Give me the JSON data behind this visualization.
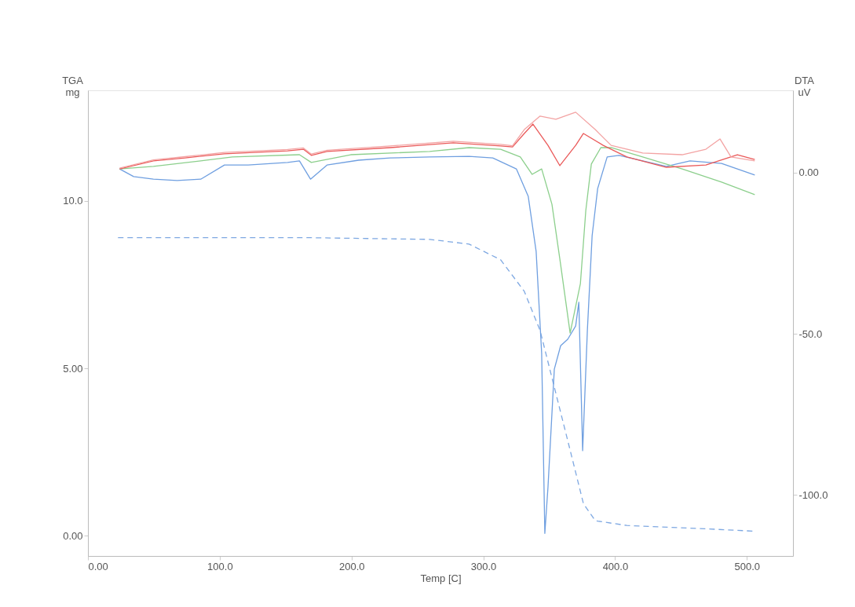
{
  "chart_data": {
    "type": "line",
    "xlabel": "Temp [C]",
    "ylabel": "TGA\nmg",
    "y2label": "DTA\nuV",
    "xlim": [
      0,
      535
    ],
    "xticks": [
      {
        "value": 0,
        "label": "0.00"
      },
      {
        "value": 100,
        "label": "100.0"
      },
      {
        "value": 200,
        "label": "200.0"
      },
      {
        "value": 300,
        "label": "300.0"
      },
      {
        "value": 400,
        "label": "400.0"
      },
      {
        "value": 500,
        "label": "500.0"
      }
    ],
    "ylim": [
      -0.6,
      13.3
    ],
    "yticks": [
      {
        "value": 0,
        "label": "0.00"
      },
      {
        "value": 5,
        "label": "5.00"
      },
      {
        "value": 10,
        "label": "10.0"
      }
    ],
    "y2lim": [
      -119,
      25.6
    ],
    "y2ticks": [
      {
        "value": 0,
        "label": "0.00"
      },
      {
        "value": -50,
        "label": "-50.0"
      },
      {
        "value": -100,
        "label": "-100.0"
      }
    ],
    "grid": false,
    "legend": false,
    "series": [
      {
        "color": "#7ea8e2",
        "line_style": "dashed",
        "x": [
          22.8,
          109.6,
          169.5,
          259.3,
          289.2,
          313.2,
          331.1,
          343.1,
          355.1,
          367.1,
          376,
          385,
          409,
          469,
          505
        ],
        "values": [
          8.9,
          8.9,
          8.9,
          8.85,
          8.71,
          8.24,
          7.3,
          6.13,
          4.25,
          2.37,
          0.96,
          0.45,
          0.31,
          0.21,
          0.14
        ]
      },
      {
        "color": "#6f9fe0",
        "axis": "y2",
        "x": [
          24,
          34.7,
          49.7,
          67.7,
          85.6,
          103.6,
          121.6,
          151.5,
          160.5,
          168.9,
          181.4,
          205.4,
          229.3,
          259.3,
          289.2,
          307.2,
          325.1,
          334.1,
          340.1,
          344.3,
          346.7,
          349.1,
          353.9,
          358.7,
          364.1,
          370.1,
          372.5,
          375.4,
          379,
          382.6,
          386.8,
          394,
          403,
          421,
          438.9,
          456.9,
          480.8,
          506
        ],
        "values": [
          1.2,
          -1.2,
          -2,
          -2.4,
          -2,
          2.4,
          2.4,
          3.2,
          3.7,
          -2,
          2.4,
          3.9,
          4.6,
          4.9,
          5.1,
          4.6,
          1.2,
          -7.3,
          -24.4,
          -56.1,
          -112,
          -97.6,
          -61,
          -53.7,
          -51.7,
          -47.6,
          -40.2,
          -86.3,
          -48.8,
          -19.5,
          -4.9,
          4.9,
          5.4,
          3.7,
          2,
          3.7,
          2.9,
          -0.7
        ]
      },
      {
        "color": "#8ccf8c",
        "axis": "y2",
        "x": [
          24,
          49.7,
          85.6,
          109.6,
          160.5,
          169.5,
          199.4,
          259.3,
          289.2,
          313.2,
          328.1,
          337.1,
          344.3,
          352.1,
          358.1,
          365.9,
          373.7,
          377.8,
          382,
          389.2,
          397,
          421,
          450.9,
          480.8,
          506
        ],
        "values": [
          1.2,
          2,
          3.7,
          4.9,
          5.6,
          3.2,
          5.6,
          6.6,
          7.8,
          7.3,
          4.9,
          -0.5,
          1.2,
          -9.8,
          -26.8,
          -49.8,
          -34.4,
          -11.7,
          2.7,
          7.8,
          7.8,
          4.9,
          1.2,
          -2.9,
          -6.8
        ]
      },
      {
        "color": "#ea5a5a",
        "axis": "y2",
        "x": [
          24,
          49.7,
          73.7,
          103.6,
          151.5,
          163.5,
          169.5,
          181.4,
          229.3,
          277.2,
          313.2,
          322.2,
          331.1,
          337.7,
          349.1,
          358.1,
          370.1,
          376,
          391,
          409,
          438.9,
          468.9,
          492.8,
          506
        ],
        "values": [
          1.2,
          3.7,
          4.6,
          5.9,
          6.8,
          7.3,
          5.4,
          6.6,
          7.8,
          9.3,
          8.3,
          8,
          12.2,
          15.1,
          8.5,
          2.2,
          8.5,
          12.2,
          8.5,
          4.9,
          1.7,
          2.4,
          5.6,
          4.1
        ]
      },
      {
        "color": "#f3a3a3",
        "axis": "y2",
        "x": [
          24,
          49.7,
          73.7,
          103.6,
          151.5,
          163.5,
          169.5,
          181.4,
          229.3,
          277.2,
          313.2,
          322.2,
          331.1,
          343.1,
          355.1,
          370.1,
          385,
          397,
          421,
          450.9,
          468.9,
          479.6,
          488,
          506
        ],
        "values": [
          1.4,
          4,
          5,
          6.3,
          7.2,
          7.7,
          5.8,
          7,
          8.3,
          9.8,
          8.8,
          8.4,
          13.4,
          17.6,
          16.6,
          18.8,
          13.4,
          8.5,
          6.1,
          5.6,
          7.3,
          10.5,
          4.9,
          3.7
        ]
      }
    ]
  }
}
